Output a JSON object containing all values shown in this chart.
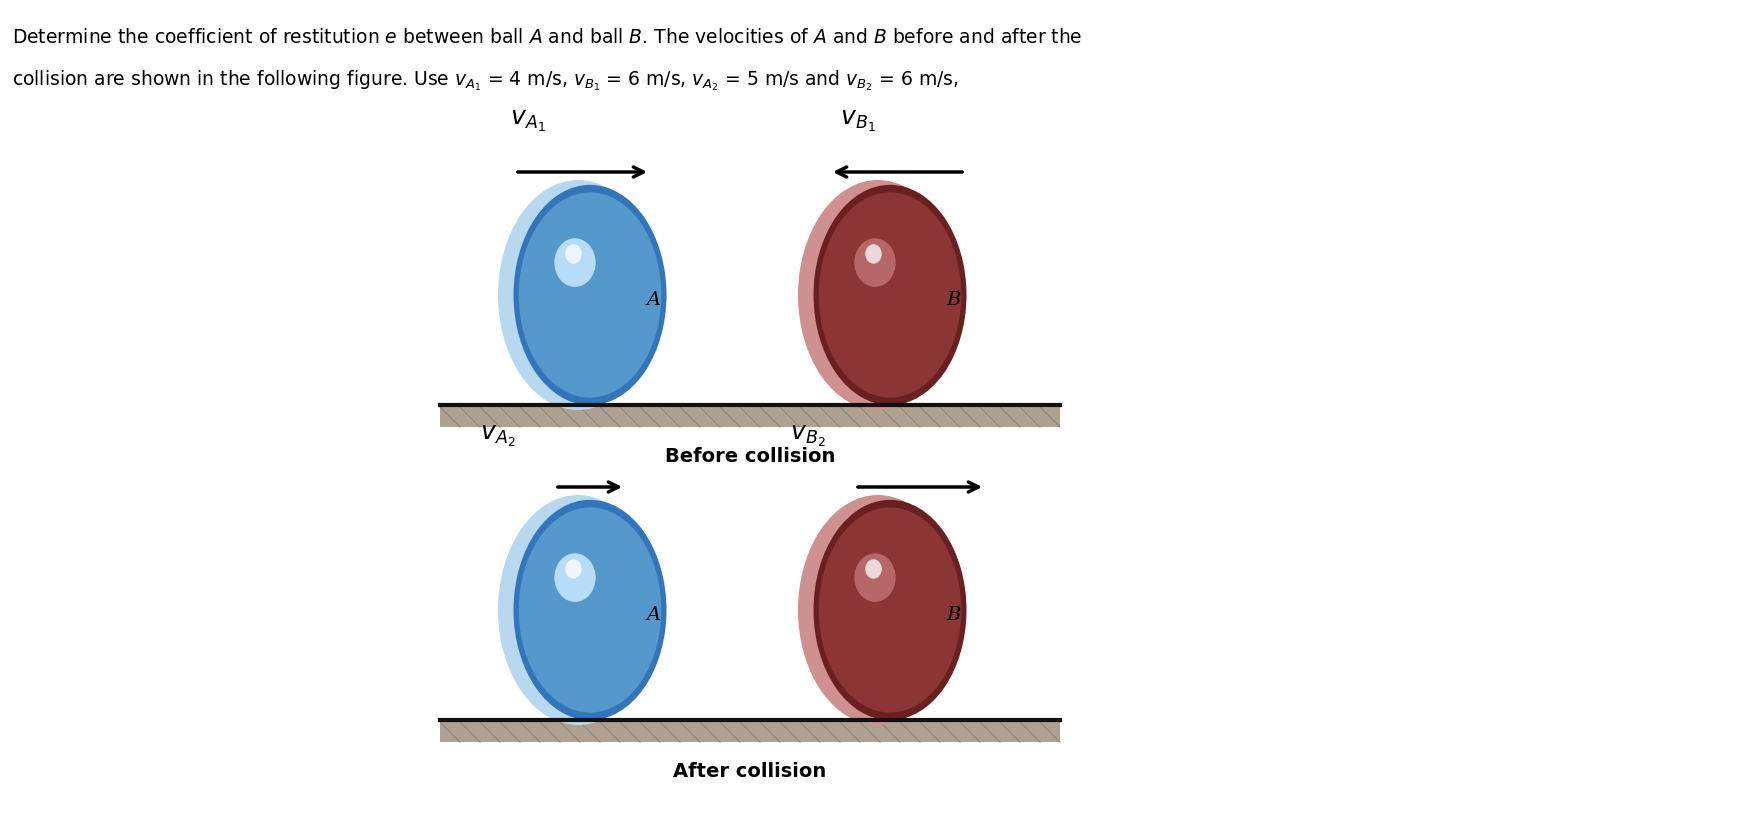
{
  "bg_color": "#ffffff",
  "before_label": "Before collision",
  "after_label": "After collision",
  "ball_A_rim_color": "#b8d8f0",
  "ball_A_main_color": "#5599cc",
  "ball_A_highlight_color": "#c8e8ff",
  "ball_A_center_color": "#3375bb",
  "ball_B_rim_color": "#d09090",
  "ball_B_main_color": "#8b3535",
  "ball_B_highlight_color": "#c07070",
  "ball_B_center_color": "#6a2020",
  "ground_top_color": "#666666",
  "ground_fill_color": "#b0a090",
  "ground_hatch_color": "#888880",
  "vA1_label": "$\\mathbf{\\mathit{v}}_{A_1}$",
  "vB1_label": "$\\mathbf{\\mathit{v}}_{B_1}$",
  "vA2_label": "$\\mathbf{\\mathit{v}}_{A_2}$",
  "vB2_label": "$\\mathbf{\\mathit{v}}_{B_2}$",
  "line1": "Determine the coefficient of restitution $e$ between ball $A$ and ball $B$. The velocities of $A$ and $B$ before and after the",
  "line2": "collision are shown in the following figure. Use $v_{A_1}$ = 4 m/s, $v_{B_1}$ = 6 m/s, $v_{A_2}$ = 5 m/s and $v_{B_2}$ = 6 m/s,"
}
